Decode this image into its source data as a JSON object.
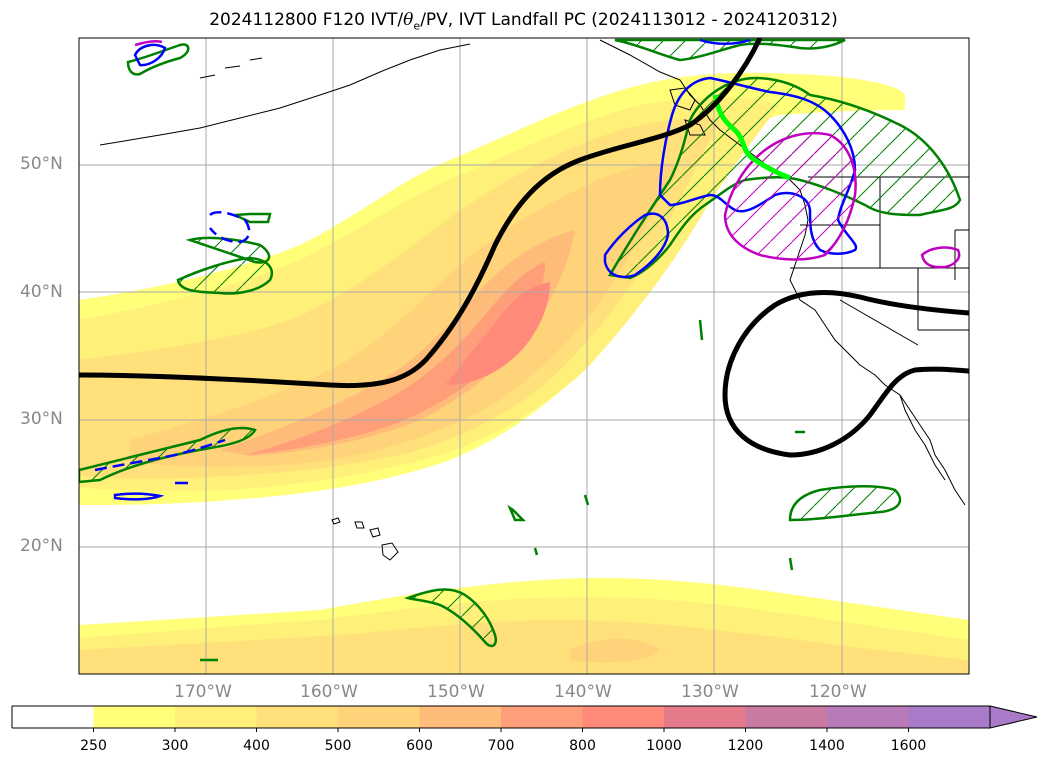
{
  "title": {
    "prefix": "2024112800 F120 IVT/",
    "theta": "θ",
    "theta_sub": "e",
    "suffix": "/PV, IVT Landfall PC (2024113012 - 2024120312)"
  },
  "lat_labels": [
    "20°N",
    "30°N",
    "40°N",
    "50°N"
  ],
  "lon_labels": [
    "170°W",
    "160°W",
    "150°W",
    "140°W",
    "130°W",
    "120°W"
  ],
  "colorbar": {
    "levels": [
      "250",
      "300",
      "400",
      "500",
      "600",
      "700",
      "800",
      "1000",
      "1200",
      "1400",
      "1600"
    ],
    "colors": [
      "#ffffff",
      "#ffff7a",
      "#fff07a",
      "#ffe07a",
      "#ffd37a",
      "#ffbb7a",
      "#ff9f7a",
      "#ff8a7a",
      "#e57a8a",
      "#c97aa3",
      "#b87ab8",
      "#a87ac8"
    ]
  },
  "colors": {
    "trough_line": "#000000",
    "ivt_contour_green": "#008000",
    "ivt_contour_blue": "#0000ff",
    "ivt_contour_magenta": "#c000c0",
    "landfall_line": "#00ff00",
    "grid": "#aaaaaa"
  }
}
